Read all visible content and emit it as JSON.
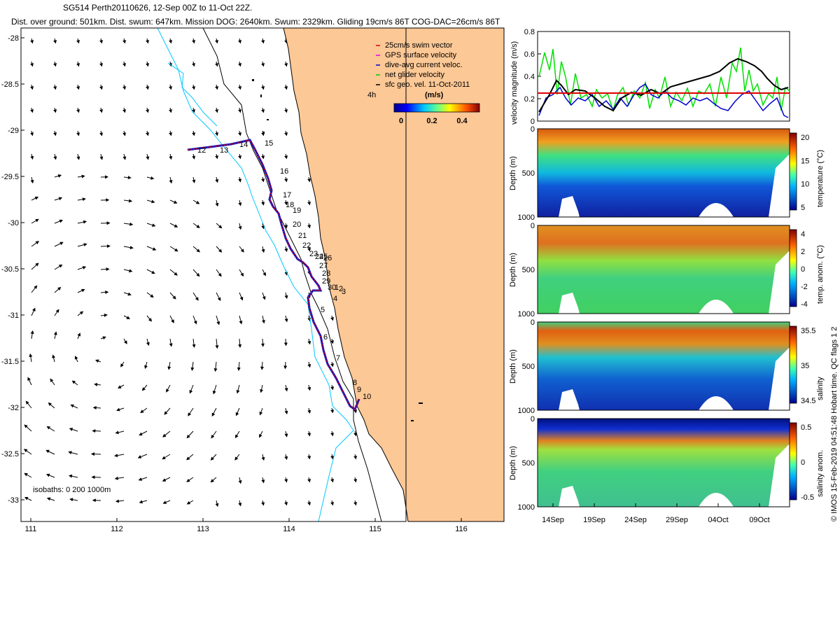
{
  "header": {
    "title": "SG514 Perth20110626, 12-Sep 00Z to 11-Oct 22Z.",
    "stats": "Dist. over ground: 501km. Dist. swum: 647km. Mission DOG: 2640km. Swum: 2329km. Gliding 19cm/s 86T COG-DAC=26cm/s 86T"
  },
  "map": {
    "lon_ticks": [
      "111",
      "112",
      "113",
      "114",
      "115",
      "116"
    ],
    "lat_ticks": [
      "-28",
      "-28.5",
      "-29",
      "-29.5",
      "-30",
      "-30.5",
      "-31",
      "-31.5",
      "-32",
      "-32.5",
      "-33"
    ],
    "legend": [
      {
        "label": "25cm/s swim vector",
        "color": "#e00000"
      },
      {
        "label": "GPS surface velocity",
        "color": "#e000e0"
      },
      {
        "label": "dive-avg current veloc.",
        "color": "#0000d0"
      },
      {
        "label": "net glider velocity",
        "color": "#00cc00"
      },
      {
        "label": "sfc geo. vel. 11-Oct-2011",
        "color": "#000000"
      }
    ],
    "time_step": "4h",
    "colorbar_unit": "(m/s)",
    "colorbar_ticks": [
      "0",
      "0.2",
      "0.4"
    ],
    "isobaths": "isobaths: 0   200  1000m",
    "track_labels": [
      "12",
      "13",
      "14",
      "15",
      "16",
      "17",
      "18",
      "19",
      "20",
      "21",
      "22",
      "23",
      "24",
      "25",
      "26",
      "27",
      "28",
      "29",
      "30",
      "1",
      "2",
      "3",
      "4",
      "5",
      "6",
      "7",
      "8",
      "9",
      "10"
    ],
    "colors": {
      "land": "#fcc896",
      "coast": "#000000",
      "isobath200": "#00c8ff",
      "track": "#1010c0",
      "track_points": "#e00000"
    }
  },
  "velocity_panel": {
    "ylabel": "velocity magnitude (m/s)",
    "yticks": [
      "0",
      "0.2",
      "0.4",
      "0.6",
      "0.8"
    ],
    "reference_line": 0.25,
    "colors": {
      "reference": "#e00000",
      "green": "#00e000",
      "blue": "#0000d0",
      "black": "#000000"
    }
  },
  "sections": [
    {
      "cbar_label": "temperature (°C)",
      "ylabel": "Depth (m)",
      "yticks": [
        "0",
        "500",
        "1000"
      ],
      "cbar_ticks": [
        "20",
        "15",
        "10",
        "5"
      ]
    },
    {
      "cbar_label": "temp. anom. (°C)",
      "ylabel": "Depth (m)",
      "yticks": [
        "0",
        "500",
        "1000"
      ],
      "cbar_ticks": [
        "4",
        "2",
        "0",
        "-2",
        "-4"
      ]
    },
    {
      "cbar_label": "salinity",
      "ylabel": "Depth (m)",
      "yticks": [
        "0",
        "500",
        "1000"
      ],
      "cbar_ticks": [
        "35.5",
        "35",
        "34.5"
      ]
    },
    {
      "cbar_label": "salinity anom.",
      "ylabel": "Depth (m)",
      "yticks": [
        "0",
        "500",
        "1000"
      ],
      "cbar_ticks": [
        "0.5",
        "0",
        "-0.5"
      ]
    }
  ],
  "time_ticks": [
    "14Sep",
    "19Sep",
    "24Sep",
    "29Sep",
    "04Oct",
    "09Oct"
  ],
  "credit": "© IMOS 15-Feb-2019 04:51:48 Hobart time. QC flags 1  2"
}
